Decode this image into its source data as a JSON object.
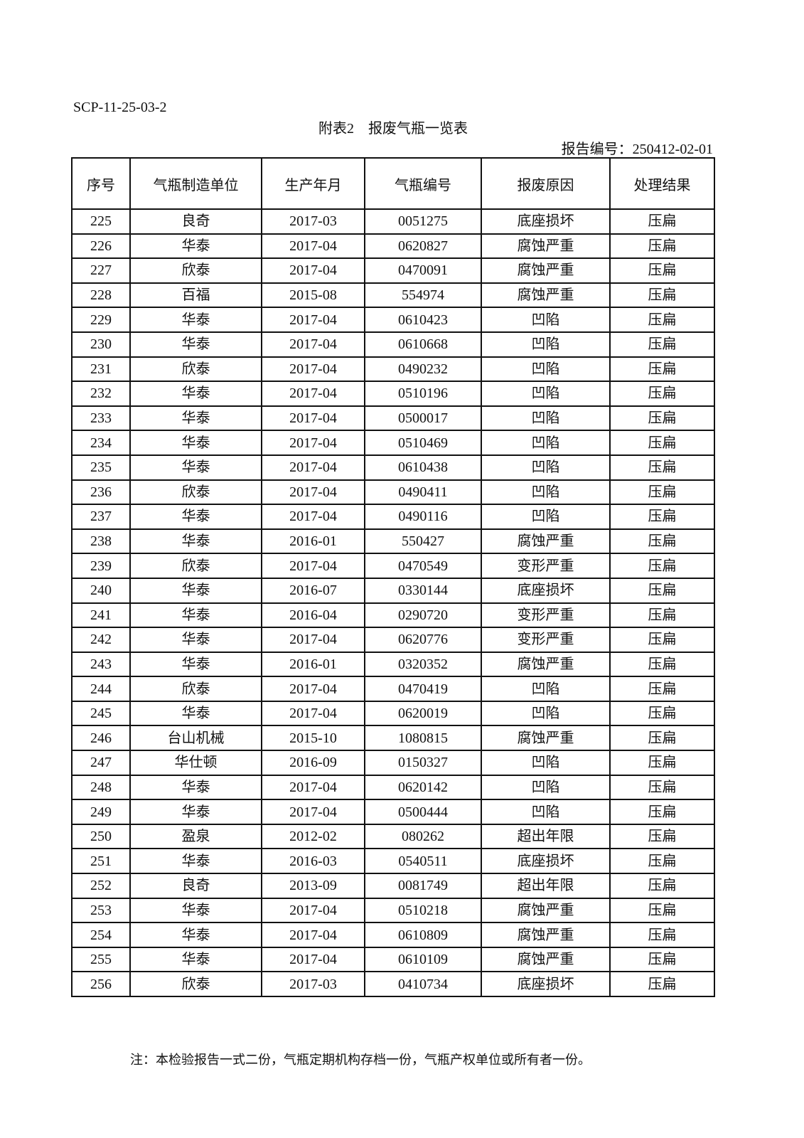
{
  "doc_code": "SCP-11-25-03-2",
  "title": "附表2　报废气瓶一览表",
  "report_number": "报告编号：250412-02-01",
  "table": {
    "headers": [
      "序号",
      "气瓶制造单位",
      "生产年月",
      "气瓶编号",
      "报废原因",
      "处理结果"
    ],
    "rows": [
      [
        "225",
        "良奇",
        "2017-03",
        "0051275",
        "底座损坏",
        "压扁"
      ],
      [
        "226",
        "华泰",
        "2017-04",
        "0620827",
        "腐蚀严重",
        "压扁"
      ],
      [
        "227",
        "欣泰",
        "2017-04",
        "0470091",
        "腐蚀严重",
        "压扁"
      ],
      [
        "228",
        "百福",
        "2015-08",
        "554974",
        "腐蚀严重",
        "压扁"
      ],
      [
        "229",
        "华泰",
        "2017-04",
        "0610423",
        "凹陷",
        "压扁"
      ],
      [
        "230",
        "华泰",
        "2017-04",
        "0610668",
        "凹陷",
        "压扁"
      ],
      [
        "231",
        "欣泰",
        "2017-04",
        "0490232",
        "凹陷",
        "压扁"
      ],
      [
        "232",
        "华泰",
        "2017-04",
        "0510196",
        "凹陷",
        "压扁"
      ],
      [
        "233",
        "华泰",
        "2017-04",
        "0500017",
        "凹陷",
        "压扁"
      ],
      [
        "234",
        "华泰",
        "2017-04",
        "0510469",
        "凹陷",
        "压扁"
      ],
      [
        "235",
        "华泰",
        "2017-04",
        "0610438",
        "凹陷",
        "压扁"
      ],
      [
        "236",
        "欣泰",
        "2017-04",
        "0490411",
        "凹陷",
        "压扁"
      ],
      [
        "237",
        "华泰",
        "2017-04",
        "0490116",
        "凹陷",
        "压扁"
      ],
      [
        "238",
        "华泰",
        "2016-01",
        "550427",
        "腐蚀严重",
        "压扁"
      ],
      [
        "239",
        "欣泰",
        "2017-04",
        "0470549",
        "变形严重",
        "压扁"
      ],
      [
        "240",
        "华泰",
        "2016-07",
        "0330144",
        "底座损坏",
        "压扁"
      ],
      [
        "241",
        "华泰",
        "2016-04",
        "0290720",
        "变形严重",
        "压扁"
      ],
      [
        "242",
        "华泰",
        "2017-04",
        "0620776",
        "变形严重",
        "压扁"
      ],
      [
        "243",
        "华泰",
        "2016-01",
        "0320352",
        "腐蚀严重",
        "压扁"
      ],
      [
        "244",
        "欣泰",
        "2017-04",
        "0470419",
        "凹陷",
        "压扁"
      ],
      [
        "245",
        "华泰",
        "2017-04",
        "0620019",
        "凹陷",
        "压扁"
      ],
      [
        "246",
        "台山机械",
        "2015-10",
        "1080815",
        "腐蚀严重",
        "压扁"
      ],
      [
        "247",
        "华仕顿",
        "2016-09",
        "0150327",
        "凹陷",
        "压扁"
      ],
      [
        "248",
        "华泰",
        "2017-04",
        "0620142",
        "凹陷",
        "压扁"
      ],
      [
        "249",
        "华泰",
        "2017-04",
        "0500444",
        "凹陷",
        "压扁"
      ],
      [
        "250",
        "盈泉",
        "2012-02",
        "080262",
        "超出年限",
        "压扁"
      ],
      [
        "251",
        "华泰",
        "2016-03",
        "0540511",
        "底座损坏",
        "压扁"
      ],
      [
        "252",
        "良奇",
        "2013-09",
        "0081749",
        "超出年限",
        "压扁"
      ],
      [
        "253",
        "华泰",
        "2017-04",
        "0510218",
        "腐蚀严重",
        "压扁"
      ],
      [
        "254",
        "华泰",
        "2017-04",
        "0610809",
        "腐蚀严重",
        "压扁"
      ],
      [
        "255",
        "华泰",
        "2017-04",
        "0610109",
        "腐蚀严重",
        "压扁"
      ],
      [
        "256",
        "欣泰",
        "2017-03",
        "0410734",
        "底座损坏",
        "压扁"
      ]
    ]
  },
  "note": "注：本检验报告一式二份，气瓶定期机构存档一份，气瓶产权单位或所有者一份。"
}
